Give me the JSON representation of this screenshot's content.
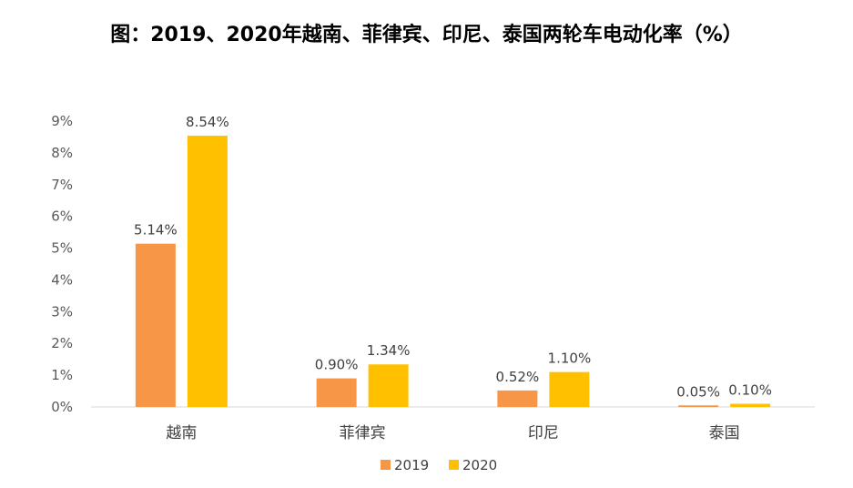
{
  "chart_data": {
    "type": "bar",
    "title": "图：2019、2020年越南、菲律宾、印尼、泰国两轮车电动化率（%）",
    "categories": [
      "越南",
      "菲律宾",
      "印尼",
      "泰国"
    ],
    "series": [
      {
        "name": "2019",
        "values": [
          5.14,
          0.9,
          0.52,
          0.05
        ],
        "labels": [
          "5.14%",
          "0.90%",
          "0.52%",
          "0.05%"
        ],
        "color": "#F79646"
      },
      {
        "name": "2020",
        "values": [
          8.54,
          1.34,
          1.1,
          0.1
        ],
        "labels": [
          "8.54%",
          "1.34%",
          "1.10%",
          "0.10%"
        ],
        "color": "#FFC000"
      }
    ],
    "ylim": [
      0,
      9
    ],
    "yticks": [
      "0%",
      "1%",
      "2%",
      "3%",
      "4%",
      "5%",
      "6%",
      "7%",
      "8%",
      "9%"
    ],
    "xlabel": "",
    "ylabel": "",
    "grid": false,
    "legend_position": "bottom"
  }
}
